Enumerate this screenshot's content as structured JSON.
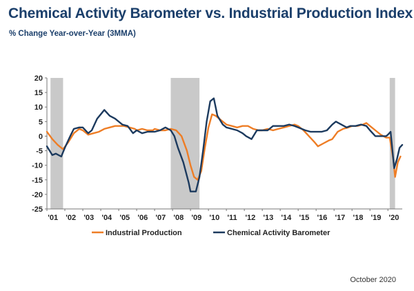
{
  "title": "Chemical Activity Barometer vs. Industrial Production Index",
  "subtitle": "% Change Year-over-Year (3MMA)",
  "footnote": "October 2020",
  "colors": {
    "industrial_production": "#ee7d25",
    "cab": "#1c3a5e",
    "recession": "#c9c9c9"
  },
  "chart_data": {
    "type": "line",
    "title": "Chemical Activity Barometer vs. Industrial Production Index",
    "subtitle": "% Change Year-over-Year (3MMA)",
    "xlabel": "",
    "ylabel": "",
    "xlim": [
      2001.0,
      2020.8
    ],
    "ylim": [
      -25,
      20
    ],
    "yticks": [
      20,
      15,
      10,
      5,
      0,
      -5,
      -10,
      -15,
      -20,
      -25
    ],
    "xtick_labels": [
      "'01",
      "'02",
      "'03",
      "'04",
      "'05",
      "'06",
      "'07",
      "'08",
      "'09",
      "'10",
      "'11",
      "'12",
      "'13",
      "'14",
      "'15",
      "'16",
      "'17",
      "'18",
      "'19",
      "'20"
    ],
    "grid": false,
    "legend_position": "bottom",
    "recessions": [
      [
        2001.2,
        2001.9
      ],
      [
        2007.9,
        2009.5
      ],
      [
        2020.1,
        2020.4
      ]
    ],
    "series": [
      {
        "name": "Industrial Production",
        "color": "#ee7d25",
        "points": [
          [
            2001.0,
            1.5
          ],
          [
            2001.3,
            -1
          ],
          [
            2001.6,
            -3
          ],
          [
            2001.9,
            -4.5
          ],
          [
            2002.2,
            -2
          ],
          [
            2002.5,
            1
          ],
          [
            2002.8,
            2.5
          ],
          [
            2003.0,
            2
          ],
          [
            2003.3,
            0.5
          ],
          [
            2003.6,
            1
          ],
          [
            2003.9,
            1.5
          ],
          [
            2004.2,
            2.5
          ],
          [
            2004.5,
            3
          ],
          [
            2004.8,
            3.5
          ],
          [
            2005.0,
            3.5
          ],
          [
            2005.3,
            3.5
          ],
          [
            2005.6,
            3
          ],
          [
            2005.9,
            2.5
          ],
          [
            2006.0,
            2
          ],
          [
            2006.3,
            2.5
          ],
          [
            2006.6,
            2
          ],
          [
            2006.9,
            2
          ],
          [
            2007.0,
            2.5
          ],
          [
            2007.3,
            2
          ],
          [
            2007.6,
            2
          ],
          [
            2007.9,
            2.5
          ],
          [
            2008.2,
            2
          ],
          [
            2008.5,
            0
          ],
          [
            2008.8,
            -5
          ],
          [
            2009.0,
            -10
          ],
          [
            2009.2,
            -14
          ],
          [
            2009.4,
            -15
          ],
          [
            2009.6,
            -12
          ],
          [
            2009.8,
            -4
          ],
          [
            2010.0,
            3
          ],
          [
            2010.2,
            7.5
          ],
          [
            2010.4,
            7
          ],
          [
            2010.6,
            6
          ],
          [
            2010.8,
            5
          ],
          [
            2011.0,
            4
          ],
          [
            2011.3,
            3.5
          ],
          [
            2011.6,
            3
          ],
          [
            2011.9,
            3.5
          ],
          [
            2012.2,
            3.5
          ],
          [
            2012.5,
            2.5
          ],
          [
            2012.8,
            2
          ],
          [
            2013.0,
            2
          ],
          [
            2013.3,
            2.5
          ],
          [
            2013.6,
            2
          ],
          [
            2013.9,
            2.5
          ],
          [
            2014.2,
            3
          ],
          [
            2014.5,
            3.5
          ],
          [
            2014.8,
            4
          ],
          [
            2015.0,
            3.5
          ],
          [
            2015.3,
            2
          ],
          [
            2015.6,
            0
          ],
          [
            2015.9,
            -2
          ],
          [
            2016.1,
            -3.5
          ],
          [
            2016.4,
            -2.5
          ],
          [
            2016.7,
            -1.5
          ],
          [
            2016.9,
            -1
          ],
          [
            2017.2,
            1.5
          ],
          [
            2017.5,
            2.5
          ],
          [
            2017.8,
            3
          ],
          [
            2018.0,
            3.5
          ],
          [
            2018.3,
            3.5
          ],
          [
            2018.6,
            4
          ],
          [
            2018.8,
            4.5
          ],
          [
            2019.0,
            3.5
          ],
          [
            2019.3,
            2
          ],
          [
            2019.6,
            0.5
          ],
          [
            2019.9,
            -0.5
          ],
          [
            2020.1,
            -0.5
          ],
          [
            2020.3,
            -8
          ],
          [
            2020.4,
            -14
          ],
          [
            2020.55,
            -9
          ],
          [
            2020.7,
            -7
          ]
        ]
      },
      {
        "name": "Chemical Activity Barometer",
        "color": "#1c3a5e",
        "points": [
          [
            2001.0,
            -3.5
          ],
          [
            2001.3,
            -6.5
          ],
          [
            2001.5,
            -6
          ],
          [
            2001.8,
            -7
          ],
          [
            2002.0,
            -4
          ],
          [
            2002.3,
            0
          ],
          [
            2002.5,
            2.5
          ],
          [
            2002.8,
            3
          ],
          [
            2003.0,
            3
          ],
          [
            2003.3,
            1
          ],
          [
            2003.5,
            2
          ],
          [
            2003.8,
            6
          ],
          [
            2004.0,
            7.5
          ],
          [
            2004.2,
            9
          ],
          [
            2004.5,
            7
          ],
          [
            2004.8,
            6
          ],
          [
            2005.0,
            5
          ],
          [
            2005.2,
            4
          ],
          [
            2005.5,
            3.5
          ],
          [
            2005.8,
            1
          ],
          [
            2006.0,
            2
          ],
          [
            2006.3,
            1
          ],
          [
            2006.6,
            1.5
          ],
          [
            2006.8,
            1.5
          ],
          [
            2007.0,
            1.5
          ],
          [
            2007.3,
            2
          ],
          [
            2007.6,
            3
          ],
          [
            2007.9,
            2
          ],
          [
            2008.1,
            0
          ],
          [
            2008.3,
            -4
          ],
          [
            2008.6,
            -9
          ],
          [
            2008.9,
            -16
          ],
          [
            2009.0,
            -19
          ],
          [
            2009.3,
            -19
          ],
          [
            2009.5,
            -14
          ],
          [
            2009.7,
            -5
          ],
          [
            2009.9,
            5
          ],
          [
            2010.1,
            12
          ],
          [
            2010.3,
            13
          ],
          [
            2010.5,
            7
          ],
          [
            2010.8,
            4
          ],
          [
            2011.0,
            3
          ],
          [
            2011.3,
            2.5
          ],
          [
            2011.6,
            2
          ],
          [
            2011.9,
            1
          ],
          [
            2012.1,
            0
          ],
          [
            2012.4,
            -1
          ],
          [
            2012.7,
            2
          ],
          [
            2013.0,
            2
          ],
          [
            2013.3,
            2
          ],
          [
            2013.6,
            3.5
          ],
          [
            2013.9,
            3.5
          ],
          [
            2014.2,
            3.5
          ],
          [
            2014.5,
            4
          ],
          [
            2014.8,
            3.5
          ],
          [
            2015.0,
            3
          ],
          [
            2015.4,
            2
          ],
          [
            2015.7,
            1.5
          ],
          [
            2016.0,
            1.5
          ],
          [
            2016.3,
            1.5
          ],
          [
            2016.6,
            2
          ],
          [
            2016.9,
            4
          ],
          [
            2017.1,
            5
          ],
          [
            2017.4,
            4
          ],
          [
            2017.7,
            3
          ],
          [
            2017.9,
            3.5
          ],
          [
            2018.2,
            3.5
          ],
          [
            2018.5,
            4
          ],
          [
            2018.8,
            3.5
          ],
          [
            2019.0,
            2
          ],
          [
            2019.3,
            0
          ],
          [
            2019.6,
            0
          ],
          [
            2019.9,
            0
          ],
          [
            2020.0,
            0.5
          ],
          [
            2020.15,
            1.5
          ],
          [
            2020.35,
            -11
          ],
          [
            2020.5,
            -8
          ],
          [
            2020.65,
            -4
          ],
          [
            2020.8,
            -3
          ]
        ]
      }
    ]
  }
}
